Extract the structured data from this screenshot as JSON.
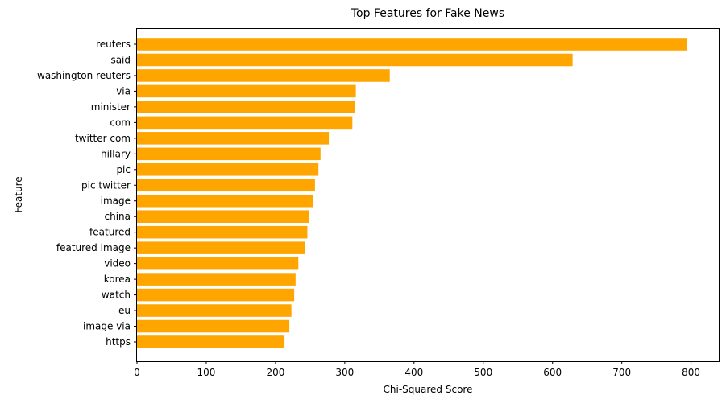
{
  "chart_data": {
    "type": "bar",
    "orientation": "horizontal",
    "title": "Top Features for Fake News",
    "xlabel": "Chi-Squared Score",
    "ylabel": "Feature",
    "xlim": [
      0,
      840
    ],
    "xticks": [
      0,
      100,
      200,
      300,
      400,
      500,
      600,
      700,
      800
    ],
    "grid": false,
    "bar_color": "#FFA500",
    "categories": [
      "reuters",
      "said",
      "washington reuters",
      "via",
      "minister",
      "com",
      "twitter com",
      "hillary",
      "pic",
      "pic twitter",
      "image",
      "china",
      "featured",
      "featured image",
      "video",
      "korea",
      "watch",
      "eu",
      "image via",
      "https"
    ],
    "values": [
      794,
      629,
      365,
      316,
      315,
      311,
      277,
      265,
      262,
      257,
      254,
      248,
      246,
      243,
      233,
      229,
      227,
      223,
      220,
      213
    ]
  }
}
